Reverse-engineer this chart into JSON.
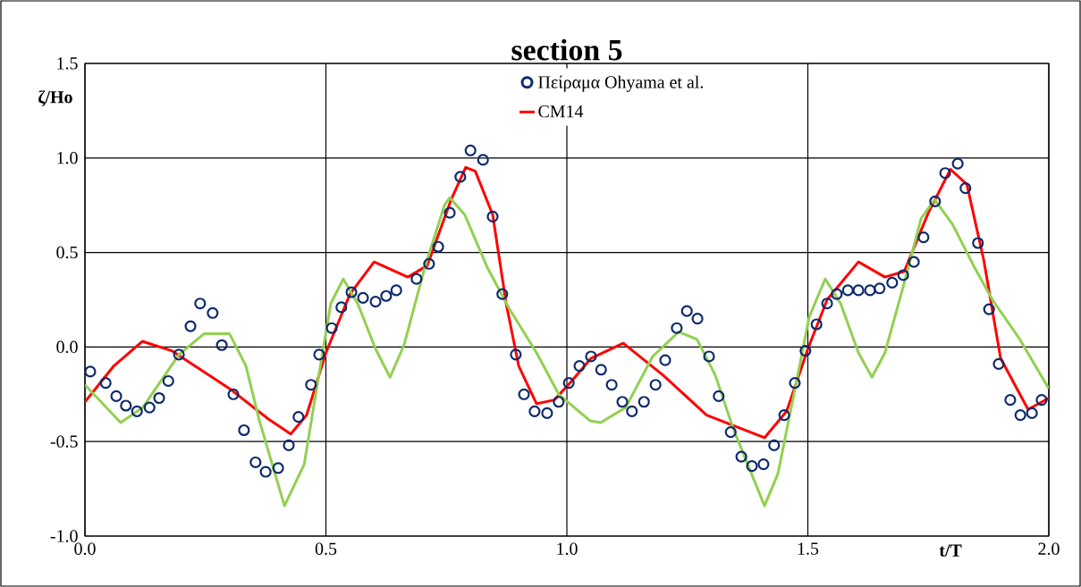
{
  "chart_data": {
    "type": "line",
    "title": "section 5",
    "xlabel": "t/T",
    "ylabel": "ζ/Ho",
    "xlim": [
      0,
      2
    ],
    "ylim": [
      -1,
      1.5
    ],
    "xticks": [
      {
        "value": 0,
        "label": "0.0"
      },
      0.5,
      {
        "value": 1,
        "label": "1.0"
      },
      1.5,
      {
        "value": 2,
        "label": "2.0"
      }
    ],
    "yticks": [
      {
        "value": -1,
        "label": "-1.0"
      },
      -0.5,
      {
        "value": 0,
        "label": "0.0"
      },
      0.5,
      {
        "value": 1,
        "label": "1.0"
      },
      1.5
    ],
    "grid": true,
    "legend": "top",
    "series": [
      {
        "name": "Πείραμα Ohyama et al.",
        "type": "scatter",
        "marker": "circle",
        "color": "#0d2a6b",
        "x": [
          0.011,
          0.043,
          0.065,
          0.085,
          0.108,
          0.134,
          0.154,
          0.173,
          0.195,
          0.219,
          0.239,
          0.265,
          0.284,
          0.308,
          0.33,
          0.354,
          0.375,
          0.401,
          0.423,
          0.443,
          0.469,
          0.486,
          0.512,
          0.532,
          0.553,
          0.577,
          0.603,
          0.625,
          0.646,
          0.688,
          0.714,
          0.733,
          0.757,
          0.779,
          0.8,
          0.826,
          0.846,
          0.866,
          0.894,
          0.911,
          0.933,
          0.959,
          0.983,
          1.004,
          1.026,
          1.05,
          1.071,
          1.093,
          1.115,
          1.135,
          1.16,
          1.184,
          1.204,
          1.228,
          1.249,
          1.271,
          1.295,
          1.315,
          1.34,
          1.362,
          1.384,
          1.408,
          1.43,
          1.451,
          1.473,
          1.495,
          1.518,
          1.54,
          1.56,
          1.583,
          1.605,
          1.629,
          1.649,
          1.675,
          1.698,
          1.72,
          1.74,
          1.764,
          1.785,
          1.811,
          1.827,
          1.853,
          1.876,
          1.896,
          1.92,
          1.941,
          1.965,
          1.985
        ],
        "values": [
          -0.13,
          -0.19,
          -0.26,
          -0.31,
          -0.34,
          -0.32,
          -0.27,
          -0.18,
          -0.04,
          0.11,
          0.23,
          0.18,
          0.01,
          -0.25,
          -0.44,
          -0.61,
          -0.66,
          -0.64,
          -0.52,
          -0.37,
          -0.2,
          -0.04,
          0.1,
          0.21,
          0.29,
          0.26,
          0.24,
          0.27,
          0.3,
          0.36,
          0.44,
          0.53,
          0.71,
          0.9,
          1.04,
          0.99,
          0.69,
          0.28,
          -0.04,
          -0.25,
          -0.34,
          -0.35,
          -0.29,
          -0.19,
          -0.1,
          -0.05,
          -0.12,
          -0.2,
          -0.29,
          -0.34,
          -0.29,
          -0.2,
          -0.07,
          0.1,
          0.19,
          0.15,
          -0.05,
          -0.26,
          -0.45,
          -0.58,
          -0.63,
          -0.62,
          -0.52,
          -0.36,
          -0.19,
          -0.02,
          0.12,
          0.23,
          0.28,
          0.3,
          0.3,
          0.3,
          0.31,
          0.34,
          0.38,
          0.45,
          0.58,
          0.77,
          0.92,
          0.97,
          0.84,
          0.55,
          0.2,
          -0.09,
          -0.28,
          -0.36,
          -0.35,
          -0.28
        ]
      },
      {
        "name": "CM14",
        "line_style": "solid",
        "color": "#ff0000",
        "x": [
          0,
          0.06,
          0.119,
          0.18,
          0.3,
          0.38,
          0.427,
          0.46,
          0.5,
          0.55,
          0.6,
          0.67,
          0.71,
          0.76,
          0.79,
          0.81,
          0.846,
          0.874,
          0.9,
          0.937,
          0.974,
          1.01,
          1.05,
          1.117,
          1.2,
          1.29,
          1.41,
          1.456,
          1.5,
          1.54,
          1.605,
          1.66,
          1.7,
          1.75,
          1.796,
          1.83,
          1.865,
          1.9,
          1.94,
          1.957,
          2.0
        ],
        "values": [
          -0.29,
          -0.1,
          0.03,
          -0.02,
          -0.22,
          -0.38,
          -0.46,
          -0.36,
          -0.03,
          0.28,
          0.45,
          0.37,
          0.43,
          0.78,
          0.95,
          0.93,
          0.7,
          0.23,
          -0.1,
          -0.3,
          -0.28,
          -0.18,
          -0.06,
          0.02,
          -0.15,
          -0.36,
          -0.48,
          -0.34,
          -0.01,
          0.25,
          0.45,
          0.37,
          0.4,
          0.71,
          0.94,
          0.86,
          0.46,
          -0.06,
          -0.25,
          -0.33,
          -0.27
        ]
      },
      {
        "line_style": "solid",
        "color": "#92d050",
        "x": [
          0,
          0.074,
          0.12,
          0.195,
          0.247,
          0.3,
          0.334,
          0.362,
          0.414,
          0.455,
          0.482,
          0.51,
          0.536,
          0.566,
          0.603,
          0.633,
          0.662,
          0.705,
          0.746,
          0.757,
          0.788,
          0.835,
          0.881,
          0.937,
          0.983,
          1.048,
          1.07,
          1.122,
          1.178,
          1.232,
          1.27,
          1.308,
          1.345,
          1.41,
          1.438,
          1.475,
          1.503,
          1.536,
          1.568,
          1.605,
          1.633,
          1.66,
          1.698,
          1.735,
          1.763,
          1.8,
          1.846,
          1.883,
          1.94,
          2.0
        ],
        "values": [
          -0.2,
          -0.4,
          -0.32,
          -0.04,
          0.07,
          0.07,
          -0.1,
          -0.39,
          -0.84,
          -0.62,
          -0.2,
          0.23,
          0.36,
          0.23,
          -0.01,
          -0.16,
          0.01,
          0.42,
          0.75,
          0.79,
          0.7,
          0.42,
          0.2,
          -0.03,
          -0.25,
          -0.39,
          -0.4,
          -0.32,
          -0.05,
          0.08,
          0.04,
          -0.15,
          -0.43,
          -0.84,
          -0.67,
          -0.2,
          0.16,
          0.36,
          0.23,
          -0.03,
          -0.16,
          -0.03,
          0.32,
          0.68,
          0.78,
          0.65,
          0.42,
          0.25,
          0.04,
          -0.22
        ]
      }
    ]
  }
}
